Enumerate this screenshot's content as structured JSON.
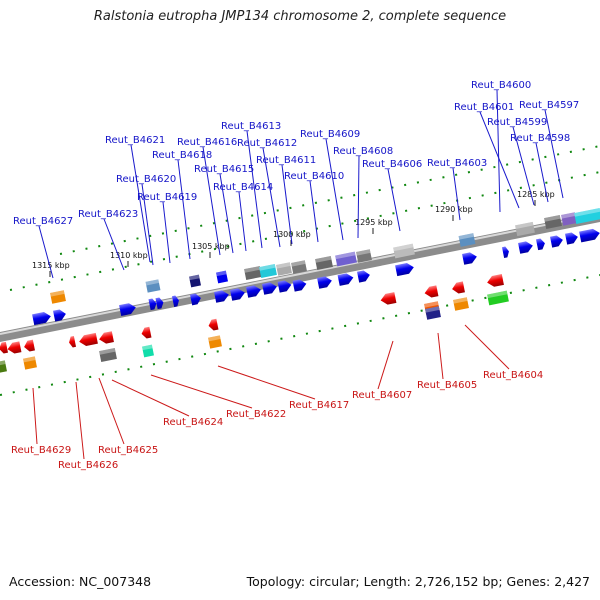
{
  "title": "Ralstonia eutropha JMP134 chromosome 2, complete sequence",
  "accession_label": "Accession: NC_007348",
  "topology_label": "Topology: circular; Length: 2,726,152 bp; Genes: 2,427",
  "colors": {
    "plus_label": "#1414c8",
    "minus_label": "#c81414",
    "plus_gene": "#0000ee",
    "minus_gene": "#ee0000",
    "backbone": "#8c8c8c",
    "tick": "#118811"
  },
  "scale_ticks": [
    "1315 kbp",
    "1310 kbp",
    "1305 kbp",
    "1300 kbp",
    "1295 kbp",
    "1290 kbp",
    "1285 kbp"
  ],
  "plus_strand_genes": [
    "Reut_B4600",
    "Reut_B4597",
    "Reut_B4601",
    "Reut_B4599",
    "Reut_B4598",
    "Reut_B4613",
    "Reut_B4609",
    "Reut_B4621",
    "Reut_B4616",
    "Reut_B4612",
    "Reut_B4608",
    "Reut_B4618",
    "Reut_B4611",
    "Reut_B4606",
    "Reut_B4603",
    "Reut_B4615",
    "Reut_B4620",
    "Reut_B4610",
    "Reut_B4614",
    "Reut_B4619",
    "Reut_B4623",
    "Reut_B4627"
  ],
  "minus_strand_genes": [
    "Reut_B4604",
    "Reut_B4605",
    "Reut_B4607",
    "Reut_B4617",
    "Reut_B4622",
    "Reut_B4624",
    "Reut_B4629",
    "Reut_B4625",
    "Reut_B4626"
  ]
}
